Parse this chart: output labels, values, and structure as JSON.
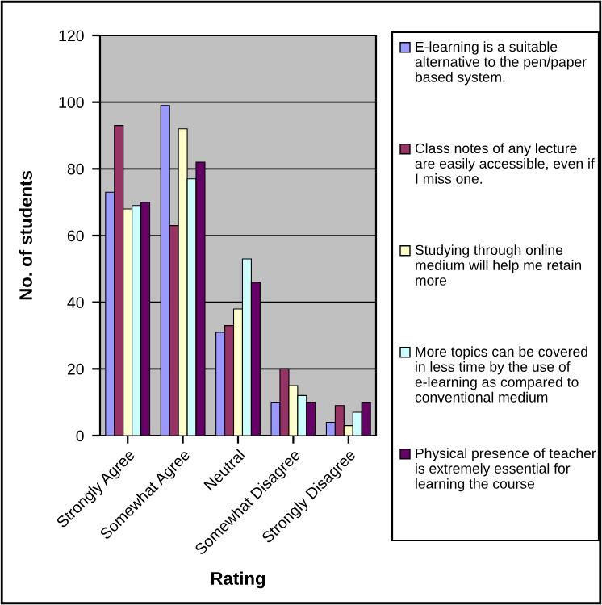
{
  "chart_data": {
    "type": "bar",
    "xlabel": "Rating",
    "ylabel": "No. of students",
    "categories": [
      "Strongly Agree",
      "Somewhat Agree",
      "Neutral",
      "Somewhat Disagree",
      "Strongly Disagree"
    ],
    "series": [
      {
        "name": "E-learning is a suitable alternative to the pen/paper based system.",
        "color": "#9999ff",
        "values": [
          73,
          99,
          31,
          10,
          4
        ]
      },
      {
        "name": "Class notes of any lecture are easily accessible, even if I miss one.",
        "color": "#993366",
        "values": [
          93,
          63,
          33,
          20,
          9
        ]
      },
      {
        "name": "Studying through online medium will help me retain more",
        "color": "#ffffcc",
        "values": [
          68,
          92,
          38,
          15,
          3
        ]
      },
      {
        "name": "More topics can be covered in less time by the use of e-learning as compared to conventional medium",
        "color": "#ccffff",
        "values": [
          69,
          77,
          53,
          12,
          7
        ]
      },
      {
        "name": "Physical presence of teacher is extremely essential for learning the course",
        "color": "#660066",
        "values": [
          70,
          82,
          46,
          10,
          10
        ]
      }
    ],
    "ylim": [
      0,
      120
    ],
    "yticks": [
      0,
      20,
      40,
      60,
      80,
      100,
      120
    ],
    "grid": "y",
    "legend": "right"
  }
}
